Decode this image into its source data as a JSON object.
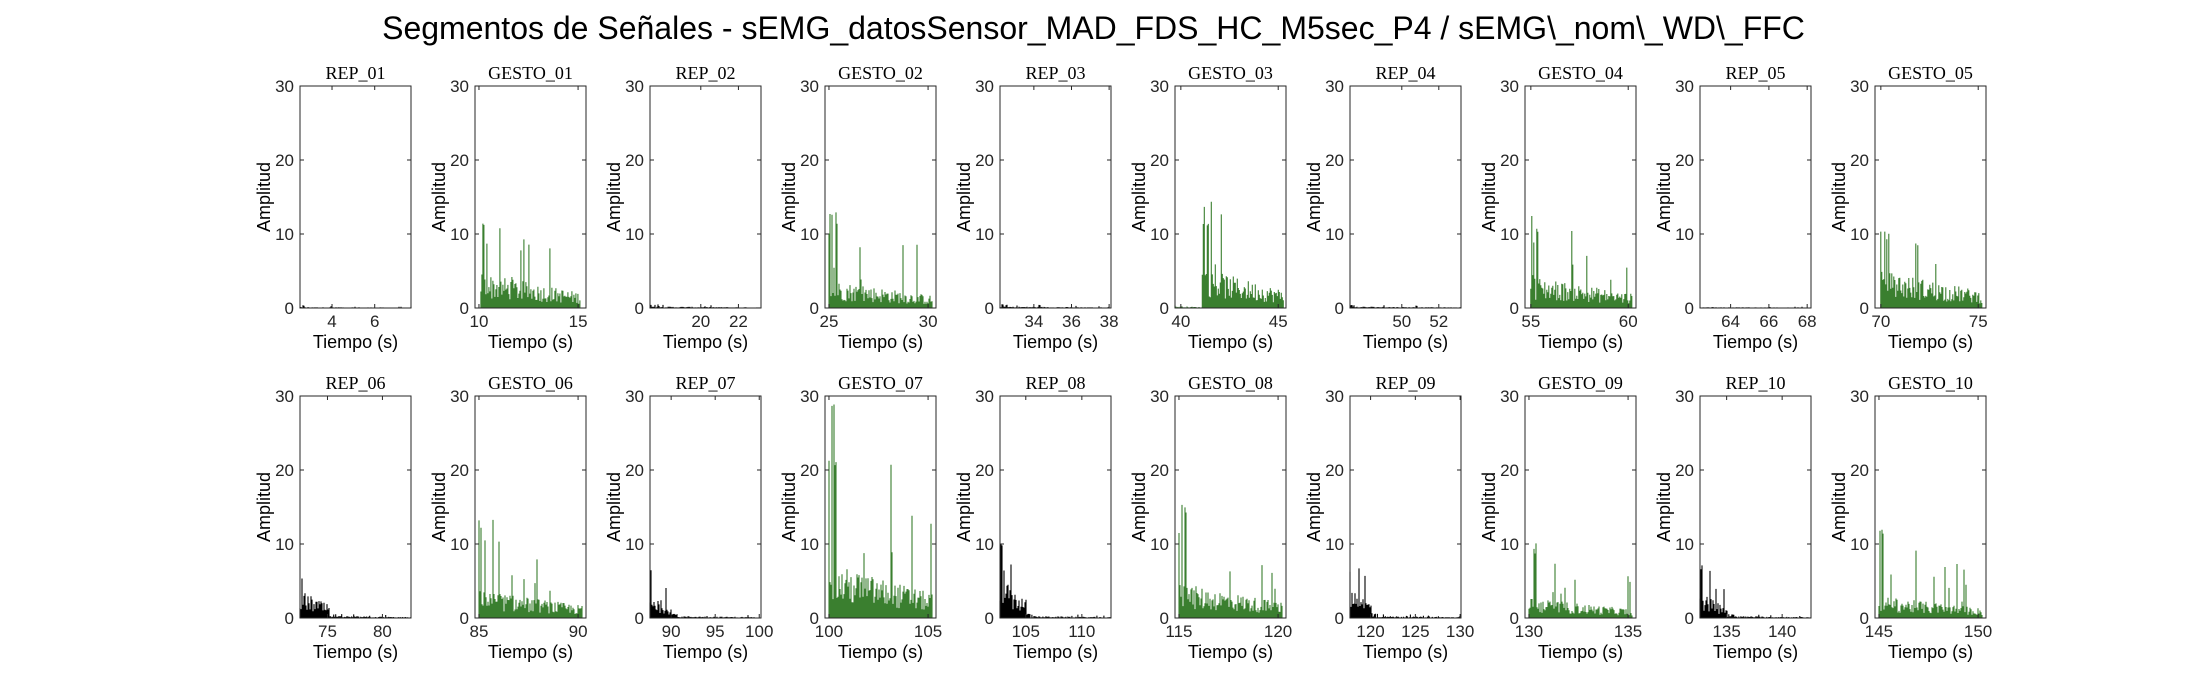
{
  "figure": {
    "title": "Segmentos de Señales - sEMG_datosSensor_MAD_FDS_HC_M5sec_P4 / sEMG\\_nom\\_WD\\_FFC"
  },
  "colors": {
    "rep": "#000000",
    "gesture": "#3a7f2f",
    "axis": "#262626"
  },
  "chart_data": [
    {
      "type": "bar",
      "title": "REP_01",
      "xlabel": "Tiempo (s)",
      "ylabel": "Amplitud",
      "xlim": [
        2.5,
        7.7
      ],
      "ylim": [
        0,
        30
      ],
      "xticks": [
        4,
        6
      ],
      "yticks": [
        0,
        10,
        20,
        30
      ],
      "series": [
        {
          "color": "#000000",
          "segments": [
            {
              "x0": 2.5,
              "x1": 7.7,
              "base": 0.1,
              "peak": 0.4
            }
          ]
        }
      ]
    },
    {
      "type": "bar",
      "title": "GESTO_01",
      "xlabel": "Tiempo (s)",
      "ylabel": "Amplitud",
      "xlim": [
        9.8,
        15.4
      ],
      "ylim": [
        0,
        30
      ],
      "xticks": [
        10,
        15
      ],
      "yticks": [
        0,
        10,
        20,
        30
      ],
      "series": [
        {
          "color": "#3a7f2f",
          "segments": [
            {
              "x0": 10.1,
              "x1": 15.1,
              "base": 3.5,
              "peak": 11.7
            }
          ]
        }
      ]
    },
    {
      "type": "bar",
      "title": "REP_02",
      "xlabel": "Tiempo (s)",
      "ylabel": "Amplitud",
      "xlim": [
        17.3,
        23.2
      ],
      "ylim": [
        0,
        30
      ],
      "xticks": [
        20,
        22
      ],
      "yticks": [
        0,
        10,
        20,
        30
      ],
      "series": [
        {
          "color": "#000000",
          "segments": [
            {
              "x0": 17.3,
              "x1": 23.2,
              "base": 0.15,
              "peak": 0.5
            }
          ]
        }
      ]
    },
    {
      "type": "bar",
      "title": "GESTO_02",
      "xlabel": "Tiempo (s)",
      "ylabel": "Amplitud",
      "xlim": [
        24.8,
        30.4
      ],
      "ylim": [
        0,
        30
      ],
      "xticks": [
        25,
        30
      ],
      "yticks": [
        0,
        10,
        20,
        30
      ],
      "series": [
        {
          "color": "#3a7f2f",
          "segments": [
            {
              "x0": 25.0,
              "x1": 30.2,
              "base": 2.8,
              "peak": 14.9
            }
          ]
        }
      ]
    },
    {
      "type": "bar",
      "title": "REP_03",
      "xlabel": "Tiempo (s)",
      "ylabel": "Amplitud",
      "xlim": [
        32.2,
        38.1
      ],
      "ylim": [
        0,
        30
      ],
      "xticks": [
        34,
        36,
        38
      ],
      "yticks": [
        0,
        10,
        20,
        30
      ],
      "series": [
        {
          "color": "#000000",
          "segments": [
            {
              "x0": 32.2,
              "x1": 38.1,
              "base": 0.15,
              "peak": 0.5
            }
          ]
        }
      ]
    },
    {
      "type": "bar",
      "title": "GESTO_03",
      "xlabel": "Tiempo (s)",
      "ylabel": "Amplitud",
      "xlim": [
        39.7,
        45.4
      ],
      "ylim": [
        0,
        30
      ],
      "xticks": [
        40,
        45
      ],
      "yticks": [
        0,
        10,
        20,
        30
      ],
      "series": [
        {
          "color": "#3a7f2f",
          "segments": [
            {
              "x0": 39.7,
              "x1": 41.1,
              "base": 0.2,
              "peak": 0.4
            },
            {
              "x0": 41.1,
              "x1": 45.3,
              "base": 4.0,
              "peak": 15.8
            }
          ]
        }
      ]
    },
    {
      "type": "bar",
      "title": "REP_04",
      "xlabel": "Tiempo (s)",
      "ylabel": "Amplitud",
      "xlim": [
        47.2,
        53.2
      ],
      "ylim": [
        0,
        30
      ],
      "xticks": [
        50,
        52
      ],
      "yticks": [
        0,
        10,
        20,
        30
      ],
      "series": [
        {
          "color": "#000000",
          "segments": [
            {
              "x0": 47.2,
              "x1": 53.2,
              "base": 0.15,
              "peak": 0.5
            }
          ]
        }
      ]
    },
    {
      "type": "bar",
      "title": "GESTO_04",
      "xlabel": "Tiempo (s)",
      "ylabel": "Amplitud",
      "xlim": [
        54.7,
        60.4
      ],
      "ylim": [
        0,
        30
      ],
      "xticks": [
        55,
        60
      ],
      "yticks": [
        0,
        10,
        20,
        30
      ],
      "series": [
        {
          "color": "#3a7f2f",
          "segments": [
            {
              "x0": 55.0,
              "x1": 60.2,
              "base": 3.2,
              "peak": 12.6
            }
          ]
        }
      ]
    },
    {
      "type": "bar",
      "title": "REP_05",
      "xlabel": "Tiempo (s)",
      "ylabel": "Amplitud",
      "xlim": [
        62.4,
        68.2
      ],
      "ylim": [
        0,
        30
      ],
      "xticks": [
        64,
        66,
        68
      ],
      "yticks": [
        0,
        10,
        20,
        30
      ],
      "series": [
        {
          "color": "#000000",
          "segments": [
            {
              "x0": 62.4,
              "x1": 68.2,
              "base": 0.1,
              "peak": 0.4
            }
          ]
        }
      ]
    },
    {
      "type": "bar",
      "title": "GESTO_05",
      "xlabel": "Tiempo (s)",
      "ylabel": "Amplitud",
      "xlim": [
        69.7,
        75.4
      ],
      "ylim": [
        0,
        30
      ],
      "xticks": [
        70,
        75
      ],
      "yticks": [
        0,
        10,
        20,
        30
      ],
      "series": [
        {
          "color": "#3a7f2f",
          "segments": [
            {
              "x0": 70.0,
              "x1": 75.2,
              "base": 3.8,
              "peak": 11.8
            }
          ]
        }
      ]
    },
    {
      "type": "bar",
      "title": "REP_06",
      "xlabel": "Tiempo (s)",
      "ylabel": "Amplitud",
      "xlim": [
        72.5,
        82.6
      ],
      "ylim": [
        0,
        30
      ],
      "xticks": [
        75,
        80
      ],
      "yticks": [
        0,
        10,
        20,
        30
      ],
      "series": [
        {
          "color": "#000000",
          "segments": [
            {
              "x0": 72.5,
              "x1": 75.2,
              "base": 2.8,
              "peak": 6.4
            },
            {
              "x0": 75.2,
              "x1": 82.6,
              "base": 0.2,
              "peak": 0.6
            }
          ]
        }
      ]
    },
    {
      "type": "bar",
      "title": "GESTO_06",
      "xlabel": "Tiempo (s)",
      "ylabel": "Amplitud",
      "xlim": [
        84.8,
        90.4
      ],
      "ylim": [
        0,
        30
      ],
      "xticks": [
        85,
        90
      ],
      "yticks": [
        0,
        10,
        20,
        30
      ],
      "series": [
        {
          "color": "#3a7f2f",
          "segments": [
            {
              "x0": 85.0,
              "x1": 90.2,
              "base": 2.8,
              "peak": 14.6
            }
          ]
        }
      ]
    },
    {
      "type": "bar",
      "title": "REP_07",
      "xlabel": "Tiempo (s)",
      "ylabel": "Amplitud",
      "xlim": [
        87.6,
        100.2
      ],
      "ylim": [
        0,
        30
      ],
      "xticks": [
        90,
        95,
        100
      ],
      "yticks": [
        0,
        10,
        20,
        30
      ],
      "series": [
        {
          "color": "#000000",
          "segments": [
            {
              "x0": 87.6,
              "x1": 90.1,
              "base": 2.5,
              "peak": 6.9
            },
            {
              "x0": 90.1,
              "x1": 100.2,
              "base": 0.2,
              "peak": 0.6
            }
          ]
        }
      ]
    },
    {
      "type": "bar",
      "title": "GESTO_07",
      "xlabel": "Tiempo (s)",
      "ylabel": "Amplitud",
      "xlim": [
        99.8,
        105.4
      ],
      "ylim": [
        0,
        30
      ],
      "xticks": [
        100,
        105
      ],
      "yticks": [
        0,
        10,
        20,
        30
      ],
      "series": [
        {
          "color": "#3a7f2f",
          "segments": [
            {
              "x0": 100.0,
              "x1": 105.2,
              "base": 5.5,
              "peak": 29.8
            }
          ]
        }
      ]
    },
    {
      "type": "bar",
      "title": "REP_08",
      "xlabel": "Tiempo (s)",
      "ylabel": "Amplitud",
      "xlim": [
        102.7,
        112.6
      ],
      "ylim": [
        0,
        30
      ],
      "xticks": [
        105,
        110
      ],
      "yticks": [
        0,
        10,
        20,
        30
      ],
      "series": [
        {
          "color": "#000000",
          "segments": [
            {
              "x0": 102.7,
              "x1": 105.1,
              "base": 4.0,
              "peak": 10.2
            },
            {
              "x0": 105.1,
              "x1": 112.6,
              "base": 0.2,
              "peak": 0.6
            }
          ]
        }
      ]
    },
    {
      "type": "bar",
      "title": "GESTO_08",
      "xlabel": "Tiempo (s)",
      "ylabel": "Amplitud",
      "xlim": [
        114.8,
        120.4
      ],
      "ylim": [
        0,
        30
      ],
      "xticks": [
        115,
        120
      ],
      "yticks": [
        0,
        10,
        20,
        30
      ],
      "series": [
        {
          "color": "#3a7f2f",
          "segments": [
            {
              "x0": 115.0,
              "x1": 120.2,
              "base": 3.5,
              "peak": 15.8
            }
          ]
        }
      ]
    },
    {
      "type": "bar",
      "title": "REP_09",
      "xlabel": "Tiempo (s)",
      "ylabel": "Amplitud",
      "xlim": [
        117.7,
        130.1
      ],
      "ylim": [
        0,
        30
      ],
      "xticks": [
        120,
        125,
        130
      ],
      "yticks": [
        0,
        10,
        20,
        30
      ],
      "series": [
        {
          "color": "#000000",
          "segments": [
            {
              "x0": 117.7,
              "x1": 120.2,
              "base": 3.0,
              "peak": 8.0
            },
            {
              "x0": 120.2,
              "x1": 130.1,
              "base": 0.2,
              "peak": 0.6
            }
          ]
        }
      ]
    },
    {
      "type": "bar",
      "title": "GESTO_09",
      "xlabel": "Tiempo (s)",
      "ylabel": "Amplitud",
      "xlim": [
        129.8,
        135.4
      ],
      "ylim": [
        0,
        30
      ],
      "xticks": [
        130,
        135
      ],
      "yticks": [
        0,
        10,
        20,
        30
      ],
      "series": [
        {
          "color": "#3a7f2f",
          "segments": [
            {
              "x0": 130.0,
              "x1": 135.2,
              "base": 2.0,
              "peak": 11.0
            }
          ]
        }
      ]
    },
    {
      "type": "bar",
      "title": "REP_10",
      "xlabel": "Tiempo (s)",
      "ylabel": "Amplitud",
      "xlim": [
        132.6,
        142.6
      ],
      "ylim": [
        0,
        30
      ],
      "xticks": [
        135,
        140
      ],
      "yticks": [
        0,
        10,
        20,
        30
      ],
      "series": [
        {
          "color": "#000000",
          "segments": [
            {
              "x0": 132.6,
              "x1": 135.1,
              "base": 2.5,
              "peak": 7.8
            },
            {
              "x0": 135.1,
              "x1": 142.6,
              "base": 0.2,
              "peak": 0.6
            }
          ]
        }
      ]
    },
    {
      "type": "bar",
      "title": "GESTO_10",
      "xlabel": "Tiempo (s)",
      "ylabel": "Amplitud",
      "xlim": [
        144.8,
        150.4
      ],
      "ylim": [
        0,
        30
      ],
      "xticks": [
        145,
        150
      ],
      "yticks": [
        0,
        10,
        20,
        30
      ],
      "series": [
        {
          "color": "#3a7f2f",
          "segments": [
            {
              "x0": 145.0,
              "x1": 150.2,
              "base": 2.2,
              "peak": 12.5
            }
          ]
        }
      ]
    }
  ]
}
